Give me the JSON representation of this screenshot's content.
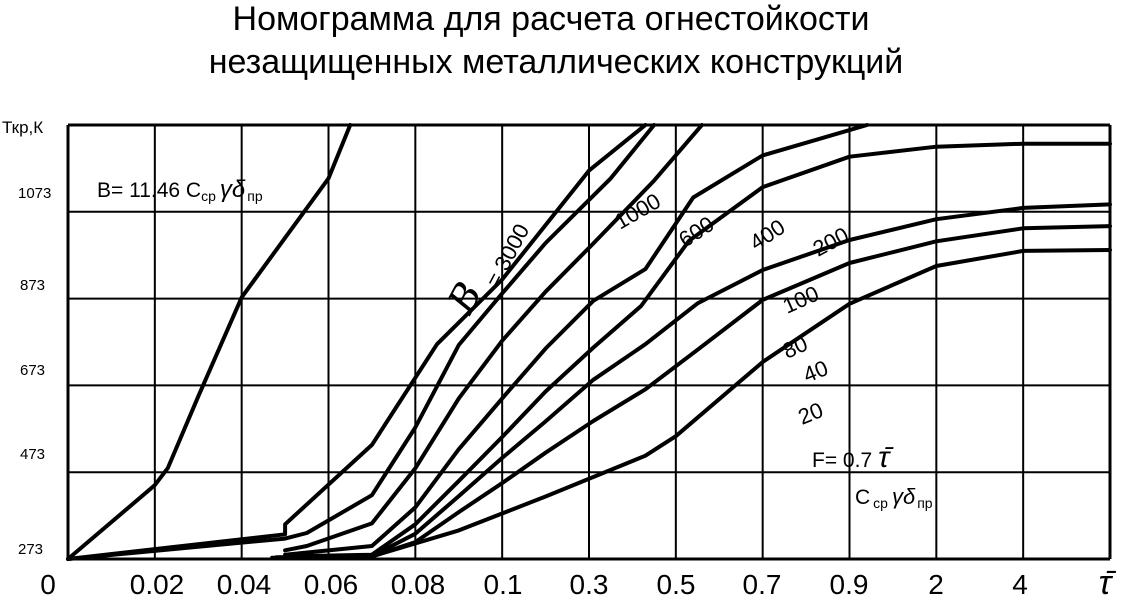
{
  "title_line1": "Номограмма для расчета огнестойкости",
  "title_line2": "незащищенных металлических конструкций",
  "chart_data": {
    "type": "line",
    "ylabel": "Ткр,К",
    "xlabel": "τ̄",
    "x_ticks": [
      "0",
      "0.02",
      "0.04",
      "0.06",
      "0.08",
      "0.1",
      "0.3",
      "0.5",
      "0.7",
      "0.9",
      "2",
      "4"
    ],
    "y_ticks": [
      "273",
      "473",
      "673",
      "873",
      "1073"
    ],
    "ylim": [
      273,
      1273
    ],
    "grid": true,
    "formula_B": {
      "main": "B= 11.46 C",
      "sub1": "ср",
      "greek": "γδ",
      "sub2": "пр"
    },
    "formula_F": {
      "line1": "F= 0.7",
      "tau": "τ̄",
      "line2_main": "C",
      "line2_sub1": "ср",
      "line2_greek": "γδ",
      "line2_sub2": "пр"
    },
    "param_symbol": "B",
    "series": [
      {
        "name": "3000",
        "label": "= 3000",
        "x": [
          0.0,
          0.2,
          0.23,
          0.3,
          0.4,
          0.5,
          0.6,
          0.65
        ],
        "y": [
          273,
          443,
          483,
          648,
          876,
          1013,
          1150,
          1273
        ]
      },
      {
        "name": "1000",
        "label": "1000",
        "x": [
          0.0,
          0.5,
          0.5,
          0.7,
          0.85,
          1.0,
          1.2,
          1.33
        ],
        "y": [
          273,
          330,
          353,
          536,
          768,
          917,
          1168,
          1273
        ]
      },
      {
        "name": "600",
        "label": "600",
        "x": [
          0.0,
          0.5,
          0.55,
          0.7,
          0.8,
          0.9,
          1.0,
          1.1,
          1.25,
          1.35
        ],
        "y": [
          273,
          320,
          333,
          420,
          576,
          766,
          885,
          1001,
          1150,
          1273
        ]
      },
      {
        "name": "400",
        "label": "400",
        "x": [
          0.5,
          0.55,
          0.7,
          0.8,
          0.9,
          1.0,
          1.1,
          1.21,
          1.35,
          1.46
        ],
        "y": [
          293,
          303,
          355,
          482,
          643,
          776,
          889,
          1000,
          1145,
          1273
        ]
      },
      {
        "name": "200",
        "label": "200",
        "x": [
          0.5,
          0.7,
          0.8,
          0.9,
          1.0,
          1.1,
          1.21,
          1.33,
          1.44,
          1.6,
          1.84
        ],
        "y": [
          283,
          303,
          392,
          526,
          643,
          758,
          868,
          941,
          1106,
          1203,
          1273
        ]
      },
      {
        "name": "100",
        "label": "100",
        "x": [
          0.5,
          0.7,
          0.8,
          0.9,
          1.0,
          1.1,
          1.21,
          1.32,
          1.43,
          1.6,
          1.8,
          2.0,
          2.2,
          2.4
        ],
        "y": [
          279,
          283,
          353,
          453,
          554,
          659,
          760,
          856,
          1006,
          1130,
          1200,
          1223,
          1230,
          1230
        ]
      },
      {
        "name": "80",
        "label": "80",
        "x": [
          0.48,
          0.7,
          0.8,
          0.9,
          1.0,
          1.1,
          1.21,
          1.33,
          1.45,
          1.6,
          1.8,
          2.0,
          2.2,
          2.4
        ],
        "y": [
          277,
          280,
          331,
          418,
          506,
          590,
          686,
          768,
          862,
          939,
          1008,
          1056,
          1082,
          1090
        ]
      },
      {
        "name": "40",
        "label": "40",
        "x": [
          0.5,
          0.7,
          0.8,
          0.9,
          1.0,
          1.1,
          1.21,
          1.33,
          1.45,
          1.6,
          1.8,
          2.0,
          2.2,
          2.4
        ],
        "y": [
          276,
          279,
          312,
          381,
          448,
          518,
          591,
          664,
          755,
          870,
          955,
          1005,
          1035,
          1040
        ]
      },
      {
        "name": "20",
        "label": "20",
        "x": [
          0.47,
          0.7,
          0.9,
          1.1,
          1.33,
          1.4,
          1.6,
          1.8,
          2.0,
          2.2,
          2.4
        ],
        "y": [
          276,
          279,
          339,
          417,
          511,
          556,
          727,
          861,
          948,
          983,
          985
        ]
      }
    ]
  }
}
